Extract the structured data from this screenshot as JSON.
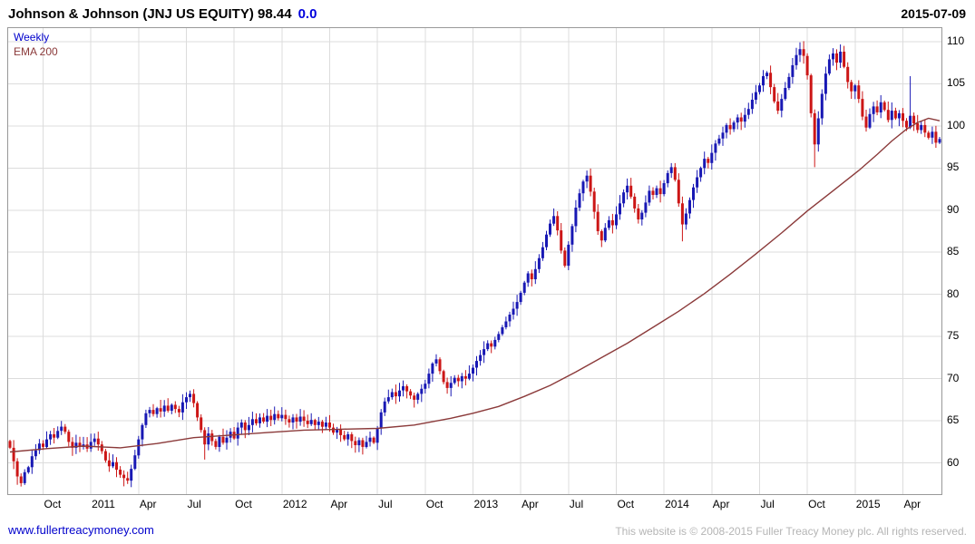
{
  "header": {
    "title": "Johnson & Johnson (JNJ US EQUITY) 98.44",
    "change": "0.0",
    "date": "2015-07-09"
  },
  "legend": {
    "series": [
      {
        "label": "Weekly",
        "color": "#0000cc"
      },
      {
        "label": "EMA 200",
        "color": "#8b3a3a"
      }
    ]
  },
  "footer": {
    "link": "www.fullertreacymoney.com",
    "copyright": "This website is © 2008-2015 Fuller Treacy Money plc. All rights reserved."
  },
  "chart_data": {
    "type": "candlestick",
    "frequency": "Weekly",
    "overlay": "EMA 200",
    "last_price": 98.44,
    "ylim": [
      56.3,
      111.6
    ],
    "y_ticks": [
      60,
      65,
      70,
      75,
      80,
      85,
      90,
      95,
      100,
      105,
      110
    ],
    "x_labels": [
      {
        "label": "Oct",
        "week": 9
      },
      {
        "label": "2011",
        "week": 22
      },
      {
        "label": "Apr",
        "week": 35
      },
      {
        "label": "Jul",
        "week": 48
      },
      {
        "label": "Oct",
        "week": 61
      },
      {
        "label": "2012",
        "week": 74
      },
      {
        "label": "Apr",
        "week": 87
      },
      {
        "label": "Jul",
        "week": 100
      },
      {
        "label": "Oct",
        "week": 113
      },
      {
        "label": "2013",
        "week": 126
      },
      {
        "label": "Apr",
        "week": 139
      },
      {
        "label": "Jul",
        "week": 152
      },
      {
        "label": "Oct",
        "week": 165
      },
      {
        "label": "2014",
        "week": 178
      },
      {
        "label": "Apr",
        "week": 191
      },
      {
        "label": "Jul",
        "week": 204
      },
      {
        "label": "Oct",
        "week": 217
      },
      {
        "label": "2015",
        "week": 230
      },
      {
        "label": "Apr",
        "week": 243
      }
    ],
    "open_first": 62.6,
    "closes": [
      61.8,
      60.2,
      58.4,
      57.6,
      58.9,
      59.5,
      60.8,
      61.5,
      62.3,
      61.9,
      62.8,
      63.4,
      63.0,
      63.8,
      64.3,
      63.7,
      62.5,
      61.8,
      62.4,
      61.9,
      62.2,
      61.7,
      62.5,
      62.9,
      62.2,
      61.4,
      60.3,
      59.6,
      60.1,
      59.2,
      58.6,
      58.2,
      57.9,
      59.3,
      60.9,
      62.8,
      64.5,
      65.9,
      66.3,
      65.8,
      66.5,
      66.1,
      66.8,
      66.2,
      66.9,
      66.4,
      66.0,
      67.2,
      67.8,
      68.2,
      67.1,
      65.4,
      63.9,
      62.2,
      63.5,
      62.6,
      61.9,
      63.1,
      62.4,
      63.0,
      63.7,
      62.9,
      64.2,
      64.8,
      63.9,
      64.5,
      65.2,
      64.7,
      65.4,
      64.9,
      65.6,
      65.1,
      65.8,
      65.3,
      65.7,
      65.2,
      64.8,
      65.4,
      64.9,
      65.5,
      65.0,
      64.6,
      65.1,
      64.5,
      64.9,
      64.3,
      64.8,
      64.2,
      63.6,
      64.0,
      63.3,
      62.8,
      63.4,
      62.6,
      62.1,
      62.7,
      61.9,
      62.5,
      63.0,
      62.4,
      64.1,
      66.0,
      67.3,
      67.8,
      68.4,
      67.9,
      68.6,
      69.1,
      68.5,
      68.0,
      67.5,
      68.2,
      68.8,
      69.4,
      70.6,
      71.8,
      72.3,
      70.9,
      69.6,
      68.9,
      69.5,
      70.1,
      69.7,
      70.3,
      70.0,
      70.6,
      71.3,
      72.1,
      72.8,
      73.5,
      74.2,
      73.8,
      74.6,
      75.3,
      76.1,
      76.8,
      77.6,
      78.3,
      79.1,
      80.2,
      81.4,
      82.5,
      81.8,
      83.0,
      84.3,
      85.6,
      87.1,
      88.4,
      89.3,
      87.6,
      85.2,
      83.4,
      85.9,
      88.1,
      90.3,
      92.0,
      93.4,
      94.1,
      92.2,
      89.8,
      87.5,
      86.4,
      87.9,
      88.8,
      88.2,
      89.5,
      90.8,
      92.1,
      92.9,
      91.6,
      90.2,
      88.9,
      89.7,
      90.9,
      92.3,
      91.8,
      92.6,
      91.9,
      93.2,
      94.4,
      95.1,
      93.6,
      90.8,
      88.3,
      89.6,
      91.2,
      92.7,
      93.9,
      95.0,
      96.1,
      95.6,
      96.8,
      97.9,
      98.5,
      99.2,
      100.1,
      99.6,
      100.4,
      101.0,
      100.5,
      101.3,
      102.0,
      103.1,
      104.0,
      104.8,
      105.9,
      106.3,
      104.6,
      102.9,
      101.8,
      103.2,
      104.5,
      105.8,
      107.2,
      108.4,
      109.1,
      108.3,
      106.0,
      101.5,
      97.8,
      100.9,
      103.8,
      106.2,
      107.9,
      108.6,
      107.5,
      108.8,
      107.0,
      105.2,
      104.1,
      104.8,
      103.2,
      101.1,
      99.8,
      101.4,
      102.3,
      101.6,
      102.8,
      101.9,
      100.7,
      101.8,
      100.9,
      101.5,
      100.6,
      99.8,
      101.2,
      100.3,
      99.5,
      100.1,
      99.2,
      98.6,
      99.3,
      98.0,
      98.44
    ],
    "wick_overrides": {
      "3": {
        "l": 57.2
      },
      "32": {
        "l": 57.5
      },
      "53": {
        "l": 60.4
      },
      "116": {
        "h": 72.9
      },
      "148": {
        "h": 90.2
      },
      "157": {
        "h": 94.7
      },
      "183": {
        "l": 86.3
      },
      "215": {
        "h": 109.9
      },
      "219": {
        "l": 95.1
      },
      "245": {
        "h": 105.9
      }
    },
    "ema_points": [
      [
        0,
        61.3
      ],
      [
        10,
        61.7
      ],
      [
        20,
        62.0
      ],
      [
        30,
        61.8
      ],
      [
        40,
        62.3
      ],
      [
        50,
        63.0
      ],
      [
        60,
        63.3
      ],
      [
        70,
        63.6
      ],
      [
        80,
        63.9
      ],
      [
        90,
        64.0
      ],
      [
        100,
        64.1
      ],
      [
        110,
        64.5
      ],
      [
        120,
        65.3
      ],
      [
        126,
        65.9
      ],
      [
        133,
        66.7
      ],
      [
        140,
        67.9
      ],
      [
        147,
        69.2
      ],
      [
        154,
        70.8
      ],
      [
        161,
        72.5
      ],
      [
        168,
        74.2
      ],
      [
        175,
        76.1
      ],
      [
        182,
        78.0
      ],
      [
        189,
        80.1
      ],
      [
        196,
        82.4
      ],
      [
        203,
        84.8
      ],
      [
        210,
        87.3
      ],
      [
        217,
        89.9
      ],
      [
        224,
        92.3
      ],
      [
        231,
        94.7
      ],
      [
        236,
        96.6
      ],
      [
        240,
        98.2
      ],
      [
        244,
        99.6
      ],
      [
        247,
        100.4
      ],
      [
        250,
        100.9
      ],
      [
        253,
        100.6
      ]
    ],
    "colors": {
      "up": "#1818b4",
      "down": "#cc1616",
      "ema": "#8b3a3a",
      "grid": "#dcdcdc",
      "accent_blue": "#0000cc",
      "copyright_gray": "#b5b5b5"
    }
  }
}
